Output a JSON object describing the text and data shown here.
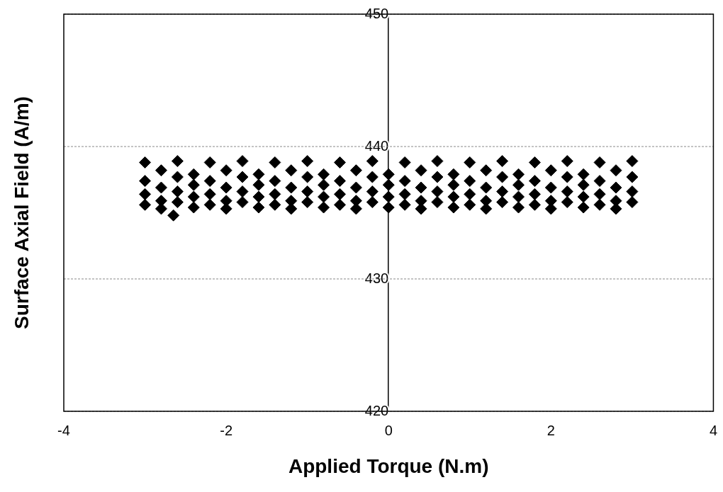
{
  "chart_data": {
    "type": "scatter",
    "xlabel": "Applied Torque (N.m)",
    "ylabel": "Surface Axial Field (A/m)",
    "xlim": [
      -4,
      4
    ],
    "xticks": [
      -4,
      -2,
      0,
      2,
      4
    ],
    "ylim": [
      420,
      450
    ],
    "yticks": [
      420,
      430,
      440,
      450
    ],
    "grid": "y",
    "marker": "diamond",
    "series": [
      {
        "color": "#000000",
        "x": [
          -3,
          -3,
          -3,
          -3,
          -2.8,
          -2.8,
          -2.8,
          -2.8,
          -2.6,
          -2.6,
          -2.6,
          -2.6,
          -2.4,
          -2.4,
          -2.4,
          -2.4,
          -2.2,
          -2.2,
          -2.2,
          -2.2,
          -2,
          -2,
          -2,
          -2,
          -1.8,
          -1.8,
          -1.8,
          -1.8,
          -1.6,
          -1.6,
          -1.6,
          -1.6,
          -1.4,
          -1.4,
          -1.4,
          -1.4,
          -1.2,
          -1.2,
          -1.2,
          -1.2,
          -1,
          -1,
          -1,
          -1,
          -0.8,
          -0.8,
          -0.8,
          -0.8,
          -0.6,
          -0.6,
          -0.6,
          -0.6,
          -0.4,
          -0.4,
          -0.4,
          -0.4,
          -0.2,
          -0.2,
          -0.2,
          -0.2,
          0,
          0,
          0,
          0,
          0.2,
          0.2,
          0.2,
          0.2,
          0.4,
          0.4,
          0.4,
          0.4,
          0.6,
          0.6,
          0.6,
          0.6,
          0.8,
          0.8,
          0.8,
          0.8,
          1,
          1,
          1,
          1,
          1.2,
          1.2,
          1.2,
          1.2,
          1.4,
          1.4,
          1.4,
          1.4,
          1.6,
          1.6,
          1.6,
          1.6,
          1.8,
          1.8,
          1.8,
          1.8,
          2,
          2,
          2,
          2,
          2.2,
          2.2,
          2.2,
          2.2,
          2.4,
          2.4,
          2.4,
          2.4,
          2.6,
          2.6,
          2.6,
          2.6,
          2.8,
          2.8,
          2.8,
          2.8,
          3,
          3,
          3,
          3,
          -2.65
        ],
        "values": [
          438.8,
          437.4,
          436.4,
          435.6,
          438.2,
          436.9,
          435.9,
          435.3,
          438.9,
          437.7,
          436.6,
          435.8,
          437.9,
          437.1,
          436.2,
          435.4,
          438.8,
          437.4,
          436.4,
          435.6,
          438.2,
          436.9,
          435.9,
          435.3,
          438.9,
          437.7,
          436.6,
          435.8,
          437.9,
          437.1,
          436.2,
          435.4,
          438.8,
          437.4,
          436.4,
          435.6,
          438.2,
          436.9,
          435.9,
          435.3,
          438.9,
          437.7,
          436.6,
          435.8,
          437.9,
          437.1,
          436.2,
          435.4,
          438.8,
          437.4,
          436.4,
          435.6,
          438.2,
          436.9,
          435.9,
          435.3,
          438.9,
          437.7,
          436.6,
          435.8,
          437.9,
          437.1,
          436.2,
          435.4,
          438.8,
          437.4,
          436.4,
          435.6,
          438.2,
          436.9,
          435.9,
          435.3,
          438.9,
          437.7,
          436.6,
          435.8,
          437.9,
          437.1,
          436.2,
          435.4,
          438.8,
          437.4,
          436.4,
          435.6,
          438.2,
          436.9,
          435.9,
          435.3,
          438.9,
          437.7,
          436.6,
          435.8,
          437.9,
          437.1,
          436.2,
          435.4,
          438.8,
          437.4,
          436.4,
          435.6,
          438.2,
          436.9,
          435.9,
          435.3,
          438.9,
          437.7,
          436.6,
          435.8,
          437.9,
          437.1,
          436.2,
          435.4,
          438.8,
          437.4,
          436.4,
          435.6,
          438.2,
          436.9,
          435.9,
          435.3,
          438.9,
          437.7,
          436.6,
          435.8,
          434.8
        ]
      }
    ]
  }
}
